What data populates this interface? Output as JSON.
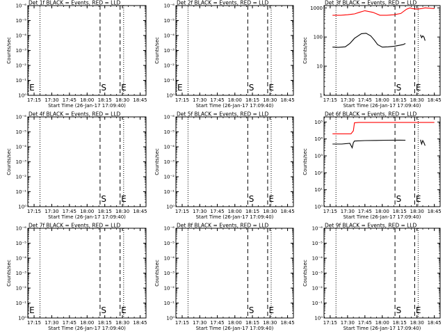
{
  "chart_data": [
    {
      "type": "line",
      "title": "Det 1f BLACK = Events, RED = LLD",
      "xlabel": "Start Time (26-Jan-17 17:09:40)",
      "ylabel": "Counts/sec",
      "x_ticks": [
        "17:15",
        "17:30",
        "17:45",
        "18:00",
        "18:15",
        "18:30",
        "18:45"
      ],
      "y_ticks": [
        "10⁰",
        "10⁻¹",
        "10⁻²",
        "10⁻³",
        "10⁻⁴",
        "10⁻⁵",
        "10⁻⁶"
      ],
      "y_scale": "log",
      "markers": [
        {
          "label": "E",
          "time": "17:10",
          "style": "dotted"
        },
        {
          "label": "",
          "time": "17:20",
          "style": "dotted"
        },
        {
          "label": "S",
          "time": "18:11",
          "style": "dashed"
        },
        {
          "label": "E",
          "time": "18:28",
          "style": "dashed"
        },
        {
          "label": "",
          "time": "18:31",
          "style": "dotted"
        }
      ],
      "series": []
    },
    {
      "type": "line",
      "title": "Det 2f BLACK = Events, RED = LLD",
      "xlabel": "Start Time (26-Jan-17 17:09:40)",
      "ylabel": "Counts/sec",
      "x_ticks": [
        "17:15",
        "17:30",
        "17:45",
        "18:00",
        "18:15",
        "18:30",
        "18:45"
      ],
      "y_ticks": [
        "10⁰",
        "10⁻¹",
        "10⁻²",
        "10⁻³",
        "10⁻⁴",
        "10⁻⁵",
        "10⁻⁶"
      ],
      "y_scale": "log",
      "markers": [
        {
          "label": "E",
          "time": "17:10",
          "style": "dotted"
        },
        {
          "label": "",
          "time": "17:20",
          "style": "dotted"
        },
        {
          "label": "S",
          "time": "18:11",
          "style": "dashed"
        },
        {
          "label": "E",
          "time": "18:28",
          "style": "dashed"
        },
        {
          "label": "",
          "time": "18:31",
          "style": "dotted"
        }
      ],
      "series": []
    },
    {
      "type": "line",
      "title": "Det 3f BLACK = Events, RED = LLD",
      "xlabel": "Start Time (26-Jan-17 17:09:40)",
      "ylabel": "Counts/sec",
      "x_ticks": [
        "17:15",
        "17:30",
        "17:45",
        "18:00",
        "18:15",
        "18:30",
        "18:45"
      ],
      "y_ticks": [
        "1",
        "10",
        "100",
        "1000"
      ],
      "y_scale": "log",
      "ylim": [
        1,
        1200
      ],
      "markers": [
        {
          "label": "",
          "time": "17:20",
          "style": "dotted"
        },
        {
          "label": "S",
          "time": "18:11",
          "style": "dashed"
        },
        {
          "label": "E",
          "time": "18:28",
          "style": "dashed"
        },
        {
          "label": "",
          "time": "18:31",
          "style": "dotted"
        }
      ],
      "series": [
        {
          "color": "#ff0000",
          "x": [
            "17:17",
            "17:24",
            "17:30",
            "17:36",
            "17:40",
            "17:45",
            "17:52",
            "17:58",
            "18:04",
            "18:10",
            "18:16",
            "18:21",
            "18:24",
            "18:26",
            "18:30",
            "18:34",
            "18:37",
            "18:40",
            "18:45"
          ],
          "y": [
            560,
            560,
            580,
            620,
            700,
            800,
            700,
            560,
            560,
            580,
            640,
            900,
            1000,
            950,
            900,
            950,
            1000,
            980,
            950
          ]
        },
        {
          "color": "#000000",
          "x": [
            "17:17",
            "17:22",
            "17:28",
            "17:32",
            "17:36",
            "17:42",
            "17:46",
            "17:50",
            "17:53",
            "17:56",
            "18:00",
            "18:05",
            "18:10",
            "18:15",
            "18:18",
            "18:20"
          ],
          "y": [
            45,
            44,
            46,
            60,
            90,
            130,
            135,
            110,
            80,
            55,
            45,
            46,
            48,
            52,
            55,
            60
          ]
        },
        {
          "color": "#000000",
          "x": [
            "18:33",
            "18:34",
            "18:35",
            "18:36",
            "18:37"
          ],
          "y": [
            120,
            95,
            110,
            100,
            75
          ]
        }
      ]
    },
    {
      "type": "line",
      "title": "Det 4f BLACK = Events, RED = LLD",
      "xlabel": "Start Time (26-Jan-17 17:09:40)",
      "ylabel": "Counts/sec",
      "x_ticks": [
        "17:15",
        "17:30",
        "17:45",
        "18:00",
        "18:15",
        "18:30",
        "18:45"
      ],
      "y_ticks": [
        "10⁰",
        "10⁻¹",
        "10⁻²",
        "10⁻³",
        "10⁻⁴",
        "10⁻⁵",
        "10⁻⁶"
      ],
      "y_scale": "log",
      "markers": [
        {
          "label": "",
          "time": "17:20",
          "style": "dotted"
        },
        {
          "label": "S",
          "time": "18:11",
          "style": "dashed"
        },
        {
          "label": "E",
          "time": "18:28",
          "style": "dashed"
        },
        {
          "label": "",
          "time": "18:31",
          "style": "dotted"
        }
      ],
      "series": []
    },
    {
      "type": "line",
      "title": "Det 5f BLACK = Events, RED = LLD",
      "xlabel": "Start Time (26-Jan-17 17:09:40)",
      "ylabel": "Counts/sec",
      "x_ticks": [
        "17:15",
        "17:30",
        "17:45",
        "18:00",
        "18:15",
        "18:30",
        "18:45"
      ],
      "y_ticks": [
        "10⁰",
        "10⁻¹",
        "10⁻²",
        "10⁻³",
        "10⁻⁴",
        "10⁻⁵",
        "10⁻⁶"
      ],
      "y_scale": "log",
      "markers": [
        {
          "label": "",
          "time": "17:20",
          "style": "dotted"
        },
        {
          "label": "S",
          "time": "18:11",
          "style": "dashed"
        },
        {
          "label": "E",
          "time": "18:28",
          "style": "dashed"
        },
        {
          "label": "",
          "time": "18:31",
          "style": "dotted"
        }
      ],
      "series": []
    },
    {
      "type": "line",
      "title": "Det 6f BLACK = Events, RED = LLD",
      "xlabel": "Start Time (26-Jan-17 17:09:40)",
      "ylabel": "Counts/sec",
      "x_ticks": [
        "17:15",
        "17:30",
        "17:45",
        "18:00",
        "18:15",
        "18:30",
        "18:45"
      ],
      "y_ticks": [
        "10⁰",
        "10¹",
        "10²",
        "10³",
        "10⁴",
        "10⁵"
      ],
      "y_scale": "log",
      "ylim": [
        1,
        200000
      ],
      "markers": [
        {
          "label": "",
          "time": "17:20",
          "style": "dotted"
        },
        {
          "label": "S",
          "time": "18:11",
          "style": "dashed"
        },
        {
          "label": "E",
          "time": "18:28",
          "style": "dashed"
        },
        {
          "label": "",
          "time": "18:31",
          "style": "dotted"
        }
      ],
      "series": [
        {
          "color": "#ff0000",
          "x": [
            "17:17",
            "17:25",
            "17:33",
            "17:35",
            "17:36",
            "17:40",
            "17:50",
            "18:00",
            "18:10",
            "18:20",
            "18:30",
            "18:40",
            "18:45"
          ],
          "y": [
            20000,
            20000,
            20000,
            30000,
            90000,
            95000,
            95000,
            95000,
            95000,
            95000,
            95000,
            95000,
            95000
          ]
        },
        {
          "color": "#000000",
          "x": [
            "17:17",
            "17:25",
            "17:32",
            "17:34",
            "17:35",
            "17:36",
            "17:45",
            "17:55",
            "18:05",
            "18:15",
            "18:20"
          ],
          "y": [
            5000,
            5000,
            5500,
            3000,
            6000,
            7500,
            8000,
            8200,
            8400,
            8500,
            8400
          ]
        },
        {
          "color": "#000000",
          "x": [
            "18:33",
            "18:34",
            "18:35",
            "18:36",
            "18:37"
          ],
          "y": [
            9000,
            5000,
            8000,
            6000,
            4000
          ]
        }
      ]
    },
    {
      "type": "line",
      "title": "Det 7f BLACK = Events, RED = LLD",
      "xlabel": "Start Time (26-Jan-17 17:09:40)",
      "ylabel": "Counts/sec",
      "x_ticks": [
        "17:15",
        "17:30",
        "17:45",
        "18:00",
        "18:15",
        "18:30",
        "18:45"
      ],
      "y_ticks": [
        "10⁰",
        "10⁻¹",
        "10⁻²",
        "10⁻³",
        "10⁻⁴",
        "10⁻⁵",
        "10⁻⁶"
      ],
      "y_scale": "log",
      "markers": [
        {
          "label": "E",
          "time": "17:10",
          "style": "dotted"
        },
        {
          "label": "",
          "time": "17:20",
          "style": "dotted"
        },
        {
          "label": "S",
          "time": "18:11",
          "style": "dashed"
        },
        {
          "label": "E",
          "time": "18:28",
          "style": "dashed"
        },
        {
          "label": "",
          "time": "18:31",
          "style": "dotted"
        }
      ],
      "series": []
    },
    {
      "type": "line",
      "title": "Det 8f BLACK = Events, RED = LLD",
      "xlabel": "Start Time (26-Jan-17 17:09:40)",
      "ylabel": "Counts/sec",
      "x_ticks": [
        "17:15",
        "17:30",
        "17:45",
        "18:00",
        "18:15",
        "18:30",
        "18:45"
      ],
      "y_ticks": [
        "10⁰",
        "10⁻¹",
        "10⁻²",
        "10⁻³",
        "10⁻⁴",
        "10⁻⁵",
        "10⁻⁶"
      ],
      "y_scale": "log",
      "markers": [
        {
          "label": "",
          "time": "17:20",
          "style": "dotted"
        },
        {
          "label": "S",
          "time": "18:11",
          "style": "dashed"
        },
        {
          "label": "E",
          "time": "18:28",
          "style": "dashed"
        },
        {
          "label": "",
          "time": "18:31",
          "style": "dotted"
        }
      ],
      "series": []
    },
    {
      "type": "line",
      "title": "Det 9f BLACK = Events, RED = LLD",
      "xlabel": "Start Time (26-Jan-17 17:09:40)",
      "ylabel": "Counts/sec",
      "x_ticks": [
        "17:15",
        "17:30",
        "17:45",
        "18:00",
        "18:15",
        "18:30",
        "18:45"
      ],
      "y_ticks": [
        "10⁰",
        "10⁻¹",
        "10⁻²",
        "10⁻³",
        "10⁻⁴",
        "10⁻⁵",
        "10⁻⁶"
      ],
      "y_scale": "log",
      "markers": [
        {
          "label": "",
          "time": "17:20",
          "style": "dotted"
        },
        {
          "label": "S",
          "time": "18:11",
          "style": "dashed"
        },
        {
          "label": "E",
          "time": "18:28",
          "style": "dashed"
        },
        {
          "label": "",
          "time": "18:31",
          "style": "dotted"
        }
      ],
      "series": []
    }
  ]
}
